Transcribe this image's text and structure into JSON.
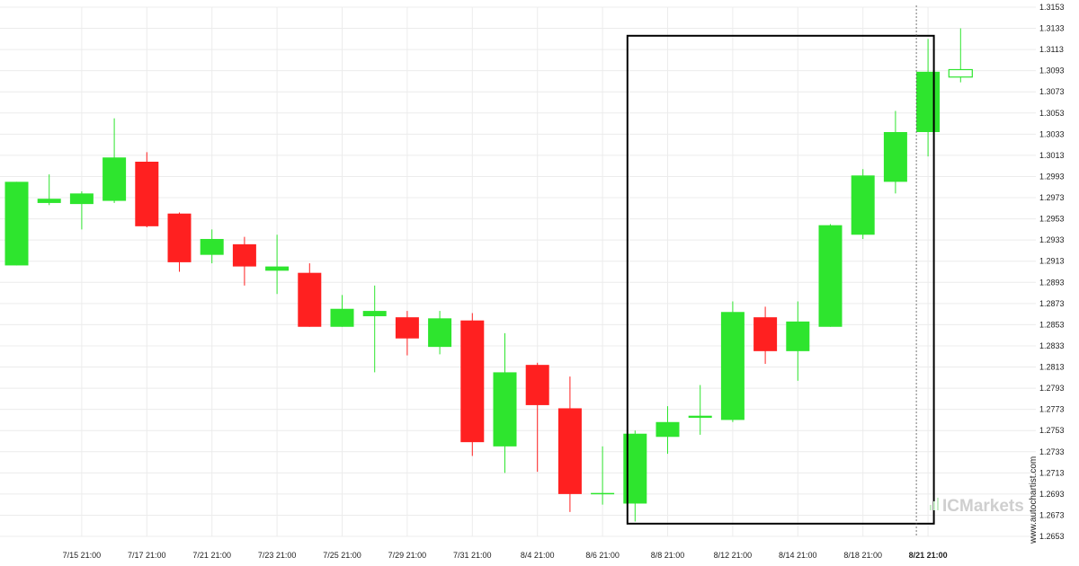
{
  "chart_data": {
    "type": "candlestick",
    "ylim": [
      1.2653,
      1.3153
    ],
    "y_ticks": [
      "1.3153",
      "1.3133",
      "1.3113",
      "1.3093",
      "1.3073",
      "1.3053",
      "1.3033",
      "1.3013",
      "1.2993",
      "1.2973",
      "1.2953",
      "1.2933",
      "1.2913",
      "1.2893",
      "1.2873",
      "1.2853",
      "1.2833",
      "1.2813",
      "1.2793",
      "1.2773",
      "1.2753",
      "1.2733",
      "1.2713",
      "1.2693",
      "1.2673",
      "1.2653"
    ],
    "x_ticks": [
      "7/15 21:00",
      "7/17 21:00",
      "7/21 21:00",
      "7/23 21:00",
      "7/25 21:00",
      "7/29 21:00",
      "7/31 21:00",
      "8/4 21:00",
      "8/6 21:00",
      "8/8 21:00",
      "8/12 21:00",
      "8/14 21:00",
      "8/18 21:00",
      "8/21 21:00"
    ],
    "highlighted_x_tick": "8/21 21:00",
    "grid": true,
    "candles": [
      {
        "o": 1.2909,
        "c": 1.2988,
        "h": 1.2988,
        "l": 1.2909
      },
      {
        "o": 1.2968,
        "c": 1.2972,
        "h": 1.2995,
        "l": 1.2966
      },
      {
        "o": 1.2967,
        "c": 1.2977,
        "h": 1.2979,
        "l": 1.2943
      },
      {
        "o": 1.297,
        "c": 1.3011,
        "h": 1.3048,
        "l": 1.2968
      },
      {
        "o": 1.3007,
        "c": 1.2946,
        "h": 1.3016,
        "l": 1.2945
      },
      {
        "o": 1.2958,
        "c": 1.2912,
        "h": 1.2959,
        "l": 1.2903
      },
      {
        "o": 1.2919,
        "c": 1.2934,
        "h": 1.2943,
        "l": 1.2911
      },
      {
        "o": 1.2929,
        "c": 1.2908,
        "h": 1.2936,
        "l": 1.289
      },
      {
        "o": 1.2904,
        "c": 1.2908,
        "h": 1.2938,
        "l": 1.2882
      },
      {
        "o": 1.2902,
        "c": 1.2851,
        "h": 1.2911,
        "l": 1.2851
      },
      {
        "o": 1.2851,
        "c": 1.2868,
        "h": 1.2881,
        "l": 1.2851
      },
      {
        "o": 1.2861,
        "c": 1.2866,
        "h": 1.289,
        "l": 1.2808
      },
      {
        "o": 1.286,
        "c": 1.284,
        "h": 1.2866,
        "l": 1.2824
      },
      {
        "o": 1.2832,
        "c": 1.2859,
        "h": 1.2866,
        "l": 1.2825
      },
      {
        "o": 1.2857,
        "c": 1.2742,
        "h": 1.2864,
        "l": 1.2729
      },
      {
        "o": 1.2738,
        "c": 1.2808,
        "h": 1.2845,
        "l": 1.2713
      },
      {
        "o": 1.2815,
        "c": 1.2777,
        "h": 1.2817,
        "l": 1.2714
      },
      {
        "o": 1.2774,
        "c": 1.2693,
        "h": 1.2804,
        "l": 1.2676
      },
      {
        "o": 1.2693,
        "c": 1.2694,
        "h": 1.2738,
        "l": 1.2683
      },
      {
        "o": 1.2684,
        "c": 1.275,
        "h": 1.2753,
        "l": 1.2667
      },
      {
        "o": 1.2747,
        "c": 1.2761,
        "h": 1.2776,
        "l": 1.2731
      },
      {
        "o": 1.2765,
        "c": 1.2767,
        "h": 1.2796,
        "l": 1.2749
      },
      {
        "o": 1.2763,
        "c": 1.2865,
        "h": 1.2875,
        "l": 1.2761
      },
      {
        "o": 1.286,
        "c": 1.2828,
        "h": 1.287,
        "l": 1.2816
      },
      {
        "o": 1.2828,
        "c": 1.2856,
        "h": 1.2875,
        "l": 1.28
      },
      {
        "o": 1.2851,
        "c": 1.2947,
        "h": 1.2948,
        "l": 1.2851
      },
      {
        "o": 1.2938,
        "c": 1.2994,
        "h": 1.3,
        "l": 1.2934
      },
      {
        "o": 1.2988,
        "c": 1.3035,
        "h": 1.3055,
        "l": 1.2977
      },
      {
        "o": 1.3035,
        "c": 1.3092,
        "h": 1.3123,
        "l": 1.3012
      },
      {
        "o": 1.3087,
        "c": 1.3094,
        "h": 1.3133,
        "l": 1.3082
      }
    ],
    "up_color": "#2ee52e",
    "down_color": "#ff2020",
    "highlight_box": {
      "from_candle": 19,
      "to_candle": 28,
      "y_top": 1.3126,
      "y_bottom": 1.2665
    },
    "current_marker_candle": 28
  },
  "colors": {
    "up": "#2ee52e",
    "down": "#ff2020",
    "grid": "#ececec",
    "box": "#000000"
  },
  "watermark": {
    "vertical_text": "www.autochartist.com",
    "logo_text": "ICMarkets"
  }
}
